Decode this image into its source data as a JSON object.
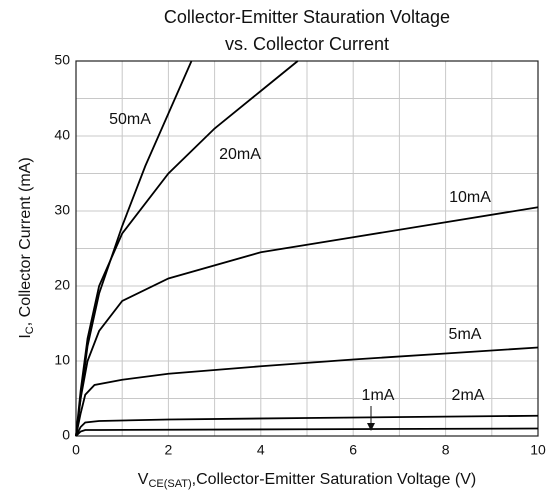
{
  "chart_data": {
    "type": "line",
    "title": [
      "Collector-Emitter Stauration Voltage",
      "vs. Collector Current"
    ],
    "xlabel": {
      "main": "V",
      "sub": "CE(SAT)",
      "rest": ",Collector-Emitter Saturation Voltage (V)"
    },
    "ylabel": {
      "main": "I",
      "sub": "C",
      "rest": ", Collector Current (mA)"
    },
    "xlim": [
      0,
      10
    ],
    "ylim": [
      0,
      50
    ],
    "xticks": [
      0,
      2,
      4,
      6,
      8,
      10
    ],
    "yticks": [
      0,
      10,
      20,
      30,
      40,
      50
    ],
    "xminor": [
      1,
      3,
      5,
      7,
      9
    ],
    "yminor": [
      5,
      15,
      25,
      35,
      45
    ],
    "grid": true,
    "series": [
      {
        "name": "50mA",
        "color": "#000000",
        "x": [
          0,
          0.1,
          0.25,
          0.5,
          1,
          1.5,
          2,
          2.5
        ],
        "values": [
          0,
          5,
          12,
          19,
          28,
          36,
          43,
          50
        ]
      },
      {
        "name": "20mA",
        "color": "#000000",
        "x": [
          0,
          0.1,
          0.25,
          0.5,
          1,
          2,
          3,
          4,
          4.8
        ],
        "values": [
          0,
          6,
          13,
          20,
          27,
          35,
          41,
          46,
          50
        ]
      },
      {
        "name": "10mA",
        "color": "#000000",
        "x": [
          0,
          0.1,
          0.25,
          0.5,
          1,
          2,
          4,
          6,
          8,
          10
        ],
        "values": [
          0,
          5,
          10,
          14,
          18,
          21,
          24.5,
          26.5,
          28.5,
          30.5
        ]
      },
      {
        "name": "5mA",
        "color": "#000000",
        "x": [
          0,
          0.1,
          0.2,
          0.4,
          1,
          2,
          4,
          6,
          8,
          10
        ],
        "values": [
          0,
          3,
          5.5,
          6.8,
          7.5,
          8.3,
          9.3,
          10.2,
          11,
          11.8
        ]
      },
      {
        "name": "1mA",
        "color": "#000000",
        "x": [
          0,
          0.1,
          0.2,
          0.5,
          5,
          10
        ],
        "values": [
          0,
          0.6,
          0.8,
          0.8,
          0.9,
          1.0
        ]
      },
      {
        "name": "2mA",
        "color": "#000000",
        "x": [
          0,
          0.1,
          0.2,
          0.5,
          2,
          5,
          10
        ],
        "values": [
          0,
          1.2,
          1.8,
          2,
          2.2,
          2.4,
          2.7
        ]
      }
    ]
  }
}
